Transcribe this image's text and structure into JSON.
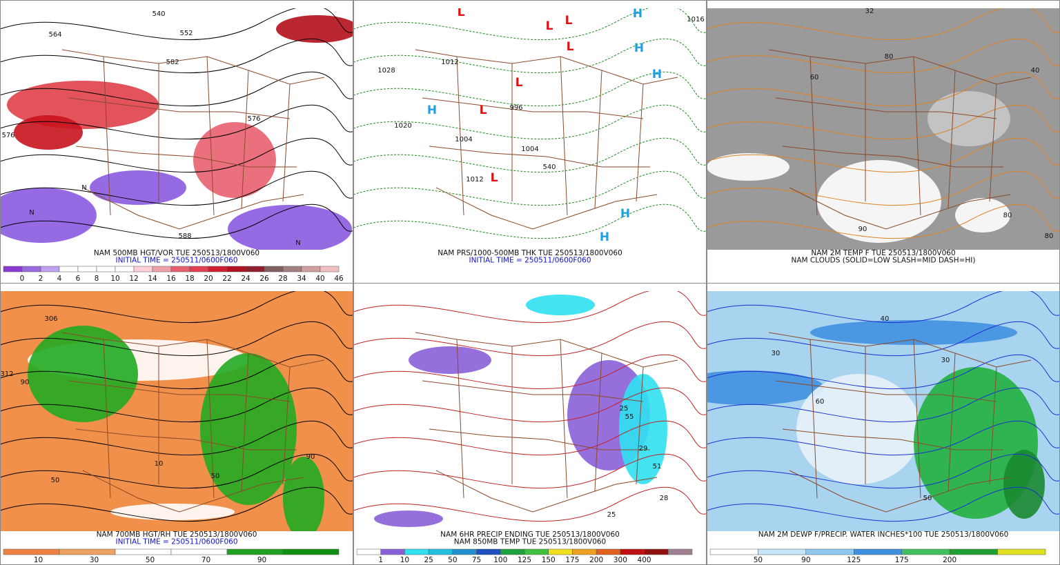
{
  "panels": [
    {
      "caption": [
        "NAM 500MB HGT/VOR TUE 250513/1800V060",
        "INITIAL TIME = 250511/0600F060"
      ],
      "scale_labels": [
        "0",
        "2",
        "4",
        "6",
        "8",
        "10",
        "12",
        "14",
        "16",
        "18",
        "20",
        "22",
        "24",
        "26",
        "28",
        "34",
        "40",
        "46"
      ],
      "map_labels": [
        "540",
        "552",
        "564",
        "576",
        "582",
        "576",
        "588",
        "N",
        "N",
        "N"
      ]
    },
    {
      "caption": [
        "NAM PRS/1000-500MB THK TUE 250513/1800V060",
        "INITIAL TIME = 250511/0600F060"
      ],
      "map_labels": [
        "L",
        "L",
        "L",
        "L",
        "L",
        "L",
        "L",
        "H",
        "H",
        "H",
        "H",
        "H",
        "H",
        "1028",
        "1020",
        "1012",
        "1004",
        "996",
        "1004",
        "1012",
        "1016",
        "540"
      ]
    },
    {
      "caption": [
        "NAM 2M TEMP F TUE 250513/1800V060",
        "NAM CLOUDS (SOLID=LOW SLASH=MID DASH=HI)"
      ],
      "map_labels": [
        "80",
        "90",
        "80",
        "60",
        "40",
        "32",
        "80"
      ]
    },
    {
      "caption": [
        "NAM 700MB HGT/RH TUE 250513/1800V060",
        "INITIAL TIME = 250511/0600F060"
      ],
      "scale_labels": [
        "10",
        "30",
        "50",
        "70",
        "90"
      ],
      "map_labels": [
        "306",
        "312",
        "90",
        "50",
        "10",
        "90",
        "50"
      ]
    },
    {
      "caption": [
        "NAM 6HR PRECIP ENDING TUE 250513/1800V060",
        "NAM 850MB TEMP TUE 250513/1800V060"
      ],
      "scale_labels": [
        "1",
        "10",
        "25",
        "50",
        "75",
        "100",
        "125",
        "150",
        "175",
        "200",
        "300",
        "400"
      ],
      "map_labels": [
        "25",
        "55",
        "29",
        "51",
        "28",
        "25"
      ]
    },
    {
      "caption": [
        "NAM 2M DEWP F/PRECIP. WATER INCHES*100 TUE 250513/1800V060"
      ],
      "scale_labels": [
        "50",
        "90",
        "125",
        "175",
        "200"
      ],
      "map_labels": [
        "30",
        "40",
        "50",
        "30",
        "60"
      ]
    }
  ]
}
